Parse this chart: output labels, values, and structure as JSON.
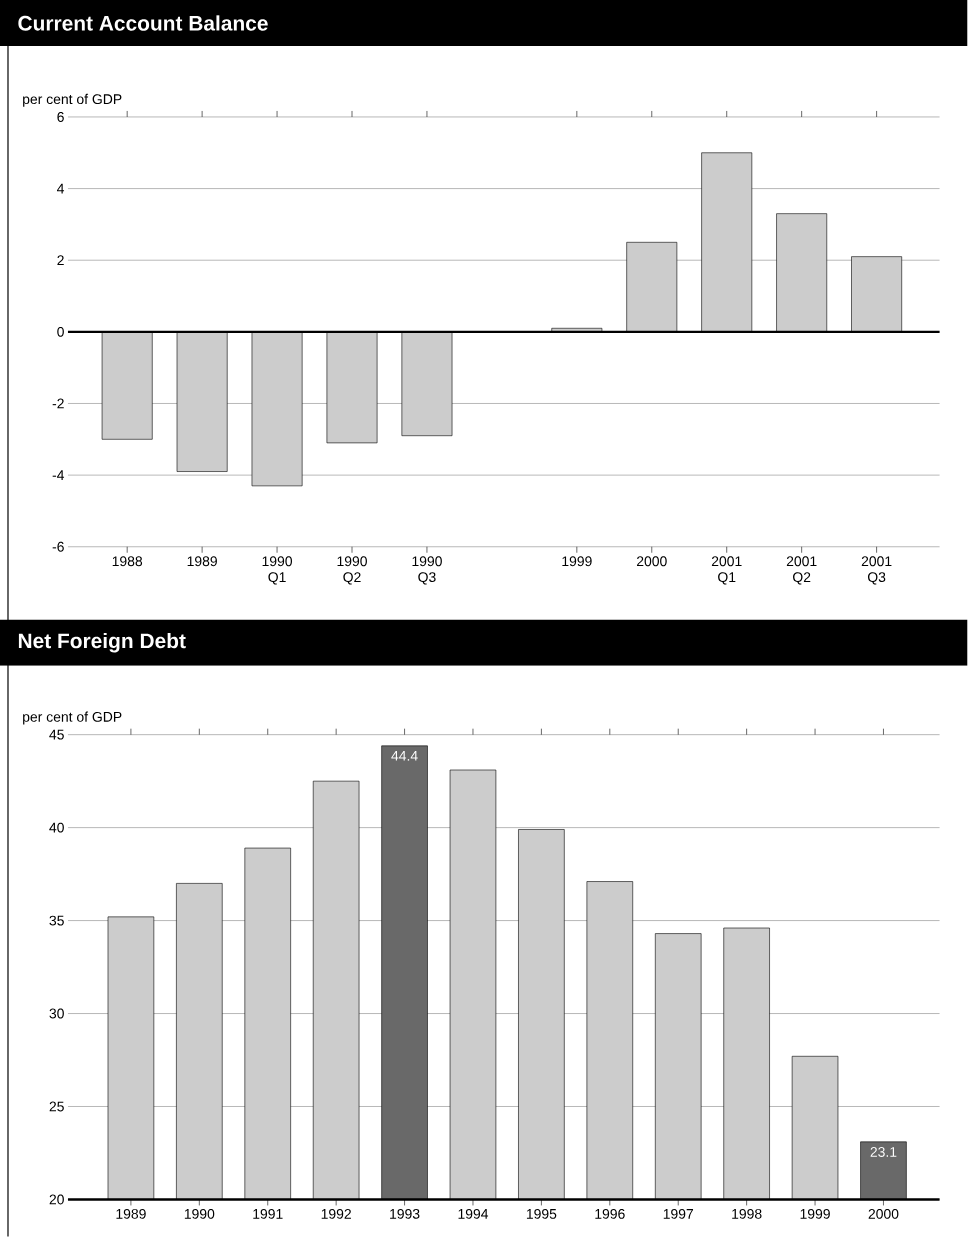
{
  "chart_data": [
    {
      "type": "bar",
      "title": "Current Account Balance",
      "ylabel": "per cent of GDP",
      "categories": [
        "1988",
        "1989",
        "1990 Q1",
        "1990 Q2",
        "1990 Q3",
        null,
        "1999",
        "2000",
        "2001 Q1",
        "2001 Q2",
        "2001 Q3"
      ],
      "values": [
        -3.0,
        -3.9,
        -4.3,
        -3.1,
        -2.9,
        null,
        0.1,
        2.5,
        5.0,
        3.3,
        2.1
      ],
      "color": "#cccccc",
      "ylim": [
        -6,
        6
      ],
      "yticks": [
        -6,
        -4,
        -2,
        0,
        2,
        4,
        6
      ],
      "grid": "y"
    },
    {
      "type": "bar",
      "title": "Net Foreign Debt",
      "ylabel": "per cent of GDP",
      "categories": [
        "1989",
        "1990",
        "1991",
        "1992",
        "1993",
        "1994",
        "1995",
        "1996",
        "1997",
        "1998",
        "1999",
        "2000"
      ],
      "values": [
        35.2,
        37.0,
        38.9,
        42.5,
        44.4,
        43.1,
        39.9,
        37.1,
        34.3,
        34.6,
        27.7,
        23.1
      ],
      "colors": [
        "#cccccc",
        "#cccccc",
        "#cccccc",
        "#cccccc",
        "#696969",
        "#cccccc",
        "#cccccc",
        "#cccccc",
        "#cccccc",
        "#cccccc",
        "#cccccc",
        "#696969"
      ],
      "value_labels": [
        null,
        null,
        null,
        null,
        "44.4",
        null,
        null,
        null,
        null,
        null,
        null,
        "23.1"
      ],
      "ylim": [
        20,
        45
      ],
      "yticks": [
        20,
        25,
        30,
        35,
        40,
        45
      ],
      "grid": "y"
    }
  ]
}
